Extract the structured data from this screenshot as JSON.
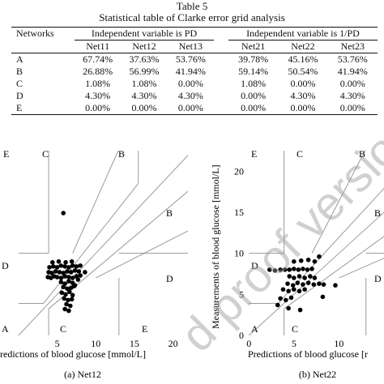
{
  "table": {
    "number": "Table 5",
    "title": "Statistical table of Clarke error grid analysis",
    "corner_header": "Networks",
    "group_headers": [
      "Independent variable is PD",
      "Independent variable is 1/PD"
    ],
    "columns": [
      "Net11",
      "Net12",
      "Net13",
      "Net21",
      "Net22",
      "Net23"
    ],
    "rows": [
      {
        "zone": "A",
        "values": [
          "67.74%",
          "37.63%",
          "53.76%",
          "39.78%",
          "45.16%",
          "53.76%"
        ]
      },
      {
        "zone": "B",
        "values": [
          "26.88%",
          "56.99%",
          "41.94%",
          "59.14%",
          "50.54%",
          "41.94%"
        ]
      },
      {
        "zone": "C",
        "values": [
          "1.08%",
          "1.08%",
          "0.00%",
          "1.08%",
          "0.00%",
          "0.00%"
        ]
      },
      {
        "zone": "D",
        "values": [
          "4.30%",
          "4.30%",
          "4.30%",
          "0.00%",
          "4.30%",
          "4.30%"
        ]
      },
      {
        "zone": "E",
        "values": [
          "0.00%",
          "0.00%",
          "0.00%",
          "0.00%",
          "0.00%",
          "0.00%"
        ]
      }
    ]
  },
  "figures": {
    "left_caption": "(a) Net12",
    "right_caption": "(b) Net22",
    "left_xlabel": "redictions of blood glucose [mmol/L]",
    "right_xlabel": "Predictions of blood glucose [r",
    "right_ylabel": "Measurements of blood glucose [mmol/L]",
    "watermark": "d proof version"
  },
  "chart_data": [
    {
      "type": "scatter",
      "title": "(a) Net12",
      "xlabel": "Predictions of blood glucose [mmol/L]",
      "ylabel": "",
      "xlim": [
        -2.4,
        21.3
      ],
      "ylim": [
        0,
        22.5
      ],
      "xticks": [
        5,
        10,
        15,
        20
      ],
      "yticks": [],
      "grid": false,
      "zone_labels": [
        "E",
        "C",
        "B",
        "B",
        "D",
        "D",
        "A",
        "C",
        "E"
      ],
      "points": [
        [
          5.8,
          14.9
        ],
        [
          3.8,
          7.1
        ],
        [
          4.2,
          7.0
        ],
        [
          4.6,
          7.2
        ],
        [
          5.0,
          7.1
        ],
        [
          5.5,
          7.0
        ],
        [
          6.0,
          7.2
        ],
        [
          6.5,
          7.1
        ],
        [
          7.0,
          7.0
        ],
        [
          7.5,
          7.2
        ],
        [
          8.0,
          7.3
        ],
        [
          3.9,
          7.7
        ],
        [
          4.3,
          7.6
        ],
        [
          4.8,
          7.8
        ],
        [
          5.3,
          7.7
        ],
        [
          5.8,
          7.6
        ],
        [
          6.3,
          7.8
        ],
        [
          6.8,
          7.7
        ],
        [
          7.3,
          7.9
        ],
        [
          7.8,
          7.8
        ],
        [
          4.0,
          8.3
        ],
        [
          4.5,
          8.4
        ],
        [
          5.0,
          8.3
        ],
        [
          5.5,
          8.5
        ],
        [
          6.0,
          8.4
        ],
        [
          6.5,
          8.3
        ],
        [
          7.0,
          8.5
        ],
        [
          7.5,
          8.4
        ],
        [
          8.0,
          8.5
        ],
        [
          4.4,
          8.9
        ],
        [
          5.2,
          9.0
        ],
        [
          6.1,
          8.9
        ],
        [
          6.9,
          9.0
        ],
        [
          5.5,
          6.5
        ],
        [
          6.0,
          6.3
        ],
        [
          6.5,
          6.6
        ],
        [
          7.0,
          6.4
        ],
        [
          5.8,
          5.9
        ],
        [
          6.3,
          5.7
        ],
        [
          6.8,
          5.8
        ],
        [
          7.2,
          6.0
        ],
        [
          5.6,
          5.2
        ],
        [
          6.1,
          5.0
        ],
        [
          6.6,
          5.3
        ],
        [
          7.0,
          4.9
        ],
        [
          5.9,
          4.5
        ],
        [
          6.4,
          4.3
        ],
        [
          6.9,
          4.4
        ],
        [
          6.2,
          3.8
        ],
        [
          6.7,
          3.6
        ],
        [
          6.0,
          3.2
        ],
        [
          6.5,
          3.0
        ],
        [
          7.3,
          6.1
        ],
        [
          7.7,
          6.8
        ],
        [
          8.6,
          7.7
        ]
      ]
    },
    {
      "type": "scatter",
      "title": "(b) Net22",
      "xlabel": "Predictions of blood glucose",
      "ylabel": "Measurements of blood glucose [mmol/L]",
      "xlim": [
        -0.2,
        15
      ],
      "ylim": [
        0,
        22.5
      ],
      "xticks": [
        0,
        5,
        10
      ],
      "yticks": [
        0,
        5,
        10,
        15,
        20
      ],
      "grid": false,
      "zone_labels": [
        "E",
        "C",
        "B",
        "B",
        "D",
        "D",
        "A",
        "C"
      ],
      "points": [
        [
          2.3,
          8.0
        ],
        [
          2.9,
          7.9
        ],
        [
          3.5,
          8.0
        ],
        [
          4.0,
          8.0
        ],
        [
          4.5,
          8.0
        ],
        [
          5.0,
          8.1
        ],
        [
          5.5,
          8.0
        ],
        [
          6.0,
          8.1
        ],
        [
          6.5,
          8.0
        ],
        [
          7.0,
          8.1
        ],
        [
          5.0,
          9.0
        ],
        [
          5.8,
          9.1
        ],
        [
          6.6,
          9.2
        ],
        [
          7.3,
          9.0
        ],
        [
          7.8,
          9.6
        ],
        [
          4.5,
          7.2
        ],
        [
          5.0,
          7.0
        ],
        [
          5.6,
          7.2
        ],
        [
          6.2,
          7.0
        ],
        [
          6.8,
          7.2
        ],
        [
          7.3,
          7.0
        ],
        [
          4.3,
          6.3
        ],
        [
          4.9,
          6.1
        ],
        [
          5.4,
          6.4
        ],
        [
          6.0,
          6.2
        ],
        [
          6.6,
          6.4
        ],
        [
          7.2,
          6.2
        ],
        [
          7.8,
          6.3
        ],
        [
          8.3,
          6.2
        ],
        [
          3.8,
          5.6
        ],
        [
          4.4,
          5.4
        ],
        [
          5.0,
          5.6
        ],
        [
          5.6,
          5.4
        ],
        [
          6.2,
          5.6
        ],
        [
          3.5,
          4.5
        ],
        [
          4.1,
          4.3
        ],
        [
          4.7,
          4.6
        ],
        [
          3.2,
          3.7
        ],
        [
          4.4,
          3.3
        ],
        [
          5.7,
          3.1
        ],
        [
          8.2,
          4.7
        ],
        [
          9.6,
          6.1
        ]
      ]
    }
  ]
}
